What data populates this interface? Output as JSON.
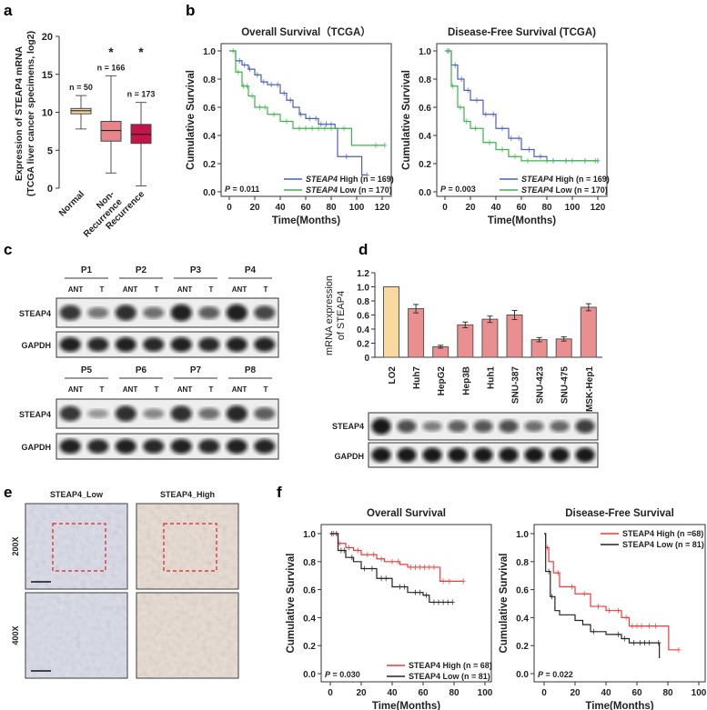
{
  "panel_labels": [
    "a",
    "b",
    "c",
    "d",
    "e",
    "f"
  ],
  "chart_data": [
    {
      "id": "a",
      "type": "box",
      "ylabel_line1": "Expression of STEAP4 mRNA",
      "ylabel_line2": "(TCGA liver cancer specimens, log2)",
      "ylim": [
        0,
        20
      ],
      "yticks": [
        "0",
        "5",
        "10",
        "15",
        "20"
      ],
      "categories": [
        "Normal",
        "Non-Recurrence",
        "Recurrence"
      ],
      "category_lines": [
        [
          "Normal"
        ],
        [
          "Non-",
          "Recurrence"
        ],
        [
          "Recurrence"
        ]
      ],
      "n_labels": [
        "n = 50",
        "n = 166",
        "n = 173"
      ],
      "significance": [
        "",
        "*",
        "*"
      ],
      "boxes": [
        {
          "min": 7.8,
          "q1": 9.8,
          "median": 10.2,
          "q3": 10.5,
          "max": 12.2,
          "color": "#f5d9a0"
        },
        {
          "min": 2.0,
          "q1": 6.2,
          "median": 7.6,
          "q3": 8.8,
          "max": 14.8,
          "color": "#e8848c"
        },
        {
          "min": 0.3,
          "q1": 5.9,
          "median": 7.1,
          "q3": 8.4,
          "max": 11.3,
          "color": "#c4144a"
        }
      ]
    },
    {
      "id": "b-os",
      "type": "line",
      "title": "Overall Survival（TCGA）",
      "xlabel": "Time(Months)",
      "ylabel": "Cumulative Survival",
      "xlim": [
        0,
        120
      ],
      "xticks": [
        "0",
        "20",
        "40",
        "60",
        "80",
        "100",
        "120"
      ],
      "ylim": [
        0,
        1
      ],
      "yticks": [
        "0.0",
        "0.2",
        "0.4",
        "0.6",
        "0.8",
        "1.0"
      ],
      "p_label": "P",
      "p_value": " = 0.011",
      "legend_position": "bottom-right",
      "series": [
        {
          "gene": "STEAP4",
          "name": " High (n = 169)",
          "color": "#4a5fc1",
          "steps": [
            [
              0,
              1
            ],
            [
              5,
              0.93
            ],
            [
              10,
              0.9
            ],
            [
              15,
              0.87
            ],
            [
              20,
              0.83
            ],
            [
              25,
              0.78
            ],
            [
              30,
              0.76
            ],
            [
              40,
              0.7
            ],
            [
              45,
              0.65
            ],
            [
              50,
              0.6
            ],
            [
              55,
              0.55
            ],
            [
              60,
              0.52
            ],
            [
              70,
              0.48
            ],
            [
              83,
              0.45
            ],
            [
              85,
              0.25
            ],
            [
              100,
              0.25
            ],
            [
              104,
              0.12
            ],
            [
              108,
              0.12
            ]
          ],
          "censored": [
            8,
            12,
            16,
            22,
            27,
            33,
            38,
            43,
            48,
            56,
            63,
            68,
            72,
            76,
            80,
            92,
            108
          ]
        },
        {
          "gene": "STEAP4",
          "name": " Low (n = 170)",
          "color": "#3cb54a",
          "steps": [
            [
              0,
              1
            ],
            [
              5,
              0.85
            ],
            [
              10,
              0.75
            ],
            [
              15,
              0.68
            ],
            [
              20,
              0.6
            ],
            [
              30,
              0.55
            ],
            [
              40,
              0.5
            ],
            [
              50,
              0.45
            ],
            [
              95,
              0.45
            ],
            [
              96,
              0.33
            ],
            [
              122,
              0.33
            ]
          ],
          "censored": [
            3,
            7,
            11,
            14,
            18,
            24,
            28,
            35,
            45,
            55,
            60,
            65,
            70,
            75,
            80,
            90,
            115,
            122
          ]
        }
      ]
    },
    {
      "id": "b-dfs",
      "type": "line",
      "title": "Disease-Free Survival (TCGA)",
      "xlabel": "Time(Months)",
      "ylabel": "Cumulative Survival",
      "xlim": [
        0,
        120
      ],
      "xticks": [
        "0",
        "20",
        "40",
        "60",
        "80",
        "100",
        "120"
      ],
      "ylim": [
        0,
        1
      ],
      "yticks": [
        "0.0",
        "0.2",
        "0.4",
        "0.6",
        "0.8",
        "1.0"
      ],
      "p_label": "P",
      "p_value": " = 0.003",
      "legend_position": "bottom-right",
      "series": [
        {
          "gene": "STEAP4",
          "name": " High (n = 169)",
          "color": "#4a5fc1",
          "steps": [
            [
              0,
              1
            ],
            [
              5,
              0.9
            ],
            [
              10,
              0.8
            ],
            [
              15,
              0.72
            ],
            [
              20,
              0.65
            ],
            [
              30,
              0.55
            ],
            [
              40,
              0.45
            ],
            [
              50,
              0.38
            ],
            [
              60,
              0.3
            ],
            [
              70,
              0.25
            ],
            [
              80,
              0.22
            ],
            [
              120,
              0.22
            ]
          ],
          "censored": [
            3,
            8,
            13,
            18,
            25,
            32,
            38,
            45,
            52,
            58,
            66,
            75,
            85,
            95,
            110,
            120
          ]
        },
        {
          "gene": "STEAP4",
          "name": " Low (n = 170)",
          "color": "#3cb54a",
          "steps": [
            [
              0,
              1
            ],
            [
              5,
              0.75
            ],
            [
              10,
              0.6
            ],
            [
              15,
              0.5
            ],
            [
              20,
              0.45
            ],
            [
              30,
              0.35
            ],
            [
              40,
              0.3
            ],
            [
              50,
              0.25
            ],
            [
              60,
              0.22
            ],
            [
              120,
              0.22
            ]
          ],
          "censored": [
            2,
            6,
            12,
            17,
            24,
            35,
            45,
            55,
            65,
            80,
            100,
            118
          ]
        }
      ]
    },
    {
      "id": "d",
      "type": "bar",
      "ylabel_line1": "mRNA expression",
      "ylabel_line2": "of STEAP4",
      "ylim": [
        0,
        1.2
      ],
      "yticks": [
        "0",
        "0.2",
        "0.4",
        "0.6",
        "0.8",
        "1.0",
        "1.2"
      ],
      "categories": [
        "LO2",
        "Huh7",
        "HepG2",
        "Hep3B",
        "Huh1",
        "SNU-387",
        "SNU-423",
        "SNU-475",
        "MSK-Hep1"
      ],
      "values": [
        1.0,
        0.69,
        0.15,
        0.46,
        0.54,
        0.6,
        0.25,
        0.26,
        0.71
      ],
      "errors": [
        0,
        0.06,
        0.02,
        0.04,
        0.045,
        0.065,
        0.03,
        0.03,
        0.05
      ],
      "colors": [
        "#fad9a1",
        "#ea8f8f"
      ]
    },
    {
      "id": "f-os",
      "type": "line",
      "title": "Overall Survival",
      "xlabel": "Time(Months)",
      "ylabel": "Cumulative Survival",
      "xlim": [
        0,
        100
      ],
      "xticks": [
        "0",
        "20",
        "40",
        "60",
        "80",
        "100"
      ],
      "ylim": [
        0,
        1
      ],
      "yticks": [
        "0.0",
        "0.2",
        "0.4",
        "0.6",
        "0.8",
        "1.0"
      ],
      "p_label": "P",
      "p_value": " = 0.030",
      "legend_position": "bottom-right",
      "series": [
        {
          "gene": "STEAP4",
          "name": " High (n = 68)",
          "color": "#f03a3a",
          "steps": [
            [
              0,
              1
            ],
            [
              5,
              0.93
            ],
            [
              10,
              0.9
            ],
            [
              15,
              0.88
            ],
            [
              20,
              0.85
            ],
            [
              30,
              0.82
            ],
            [
              35,
              0.8
            ],
            [
              45,
              0.78
            ],
            [
              50,
              0.76
            ],
            [
              70,
              0.76
            ],
            [
              71,
              0.66
            ],
            [
              86,
              0.66
            ]
          ],
          "censored": [
            2,
            6,
            12,
            18,
            24,
            28,
            33,
            40,
            44,
            52,
            55,
            58,
            61,
            64,
            67,
            73,
            77,
            86
          ]
        },
        {
          "gene": "STEAP4",
          "name": " Low (n = 81)",
          "color": "#222222",
          "steps": [
            [
              0,
              1
            ],
            [
              5,
              0.88
            ],
            [
              10,
              0.83
            ],
            [
              15,
              0.8
            ],
            [
              20,
              0.75
            ],
            [
              30,
              0.68
            ],
            [
              40,
              0.62
            ],
            [
              50,
              0.58
            ],
            [
              60,
              0.56
            ],
            [
              64,
              0.51
            ],
            [
              79,
              0.51
            ]
          ],
          "censored": [
            1,
            4,
            7,
            9,
            14,
            22,
            27,
            33,
            36,
            45,
            48,
            55,
            58,
            62,
            67,
            70,
            73,
            76,
            79
          ]
        }
      ]
    },
    {
      "id": "f-dfs",
      "type": "line",
      "title": "Disease-Free Survival",
      "xlabel": "Time(Months)",
      "ylabel": "Cumulative Survival",
      "xlim": [
        0,
        100
      ],
      "xticks": [
        "0",
        "20",
        "40",
        "60",
        "80",
        "100"
      ],
      "ylim": [
        0,
        1
      ],
      "yticks": [
        "0.0",
        "0.2",
        "0.4",
        "0.6",
        "0.8",
        "1.0"
      ],
      "p_label": "P",
      "p_value": " = 0.022",
      "legend_position": "top-right",
      "series": [
        {
          "gene": "STEAP4",
          "name": " High (n =68)",
          "color": "#f03a3a",
          "steps": [
            [
              0,
              1
            ],
            [
              1,
              0.9
            ],
            [
              3,
              0.8
            ],
            [
              6,
              0.72
            ],
            [
              10,
              0.62
            ],
            [
              20,
              0.57
            ],
            [
              30,
              0.48
            ],
            [
              40,
              0.45
            ],
            [
              50,
              0.4
            ],
            [
              55,
              0.34
            ],
            [
              80,
              0.34
            ],
            [
              80.5,
              0.17
            ],
            [
              87,
              0.17
            ]
          ],
          "censored": [
            2,
            9,
            18,
            26,
            35,
            42,
            48,
            53,
            57,
            60,
            63,
            68,
            72,
            87
          ]
        },
        {
          "gene": "STEAP4",
          "name": " Low (n = 81)",
          "color": "#222222",
          "steps": [
            [
              0,
              1
            ],
            [
              1,
              0.73
            ],
            [
              4,
              0.55
            ],
            [
              7,
              0.45
            ],
            [
              10,
              0.42
            ],
            [
              20,
              0.38
            ],
            [
              25,
              0.35
            ],
            [
              30,
              0.3
            ],
            [
              40,
              0.28
            ],
            [
              50,
              0.25
            ],
            [
              55,
              0.22
            ],
            [
              74,
              0.22
            ],
            [
              74.5,
              0.11
            ]
          ],
          "censored": [
            3,
            5,
            32,
            48,
            52,
            58,
            62,
            65,
            68,
            74
          ]
        }
      ]
    }
  ],
  "panel_c": {
    "rows": [
      {
        "patients": [
          "P1",
          "P2",
          "P3",
          "P4"
        ],
        "steap4": [
          0.8,
          0.4,
          0.85,
          0.45,
          0.95,
          0.55,
          0.95,
          0.7
        ]
      },
      {
        "patients": [
          "P5",
          "P6",
          "P7",
          "P8"
        ],
        "steap4": [
          0.8,
          0.2,
          0.85,
          0.3,
          0.85,
          0.45,
          0.9,
          0.55
        ]
      }
    ],
    "lane_labels": [
      "ANT",
      "T"
    ],
    "blot_labels": [
      "STEAP4",
      "GAPDH"
    ]
  },
  "panel_d_blot": {
    "blot_labels": [
      "STEAP4",
      "GAPDH"
    ],
    "steap4": [
      1.0,
      0.65,
      0.35,
      0.55,
      0.6,
      0.65,
      0.45,
      0.5,
      0.75
    ]
  },
  "panel_e": {
    "columns": [
      "STEAP4_Low",
      "STEAP4_High"
    ],
    "rows": [
      "200X",
      "400X"
    ]
  }
}
